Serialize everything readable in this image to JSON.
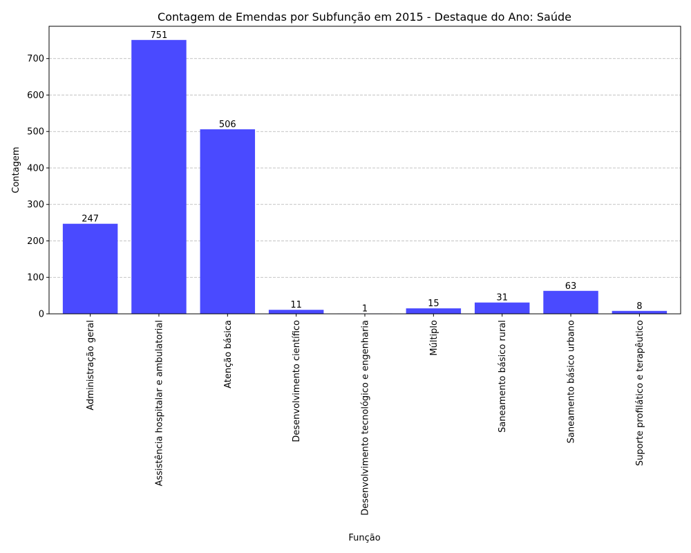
{
  "chart_data": {
    "type": "bar",
    "title": "Contagem de Emendas por Subfunção em 2015 - Destaque do Ano: Saúde",
    "xlabel": "Função",
    "ylabel": "Contagem",
    "categories": [
      "Administração geral",
      "Assistência hospitalar e ambulatorial",
      "Atenção básica",
      "Desenvolvimento científico",
      "Desenvolvimento tecnológico e engenharia",
      "Múltiplo",
      "Saneamento básico rural",
      "Saneamento básico urbano",
      "Suporte profilático e terapêutico"
    ],
    "values": [
      247,
      751,
      506,
      11,
      1,
      15,
      31,
      63,
      8
    ],
    "ylim": [
      0,
      788.55
    ],
    "yticks": [
      0,
      100,
      200,
      300,
      400,
      500,
      600,
      700
    ],
    "grid": "y-dashed",
    "bar_color": "#4a4aff"
  }
}
